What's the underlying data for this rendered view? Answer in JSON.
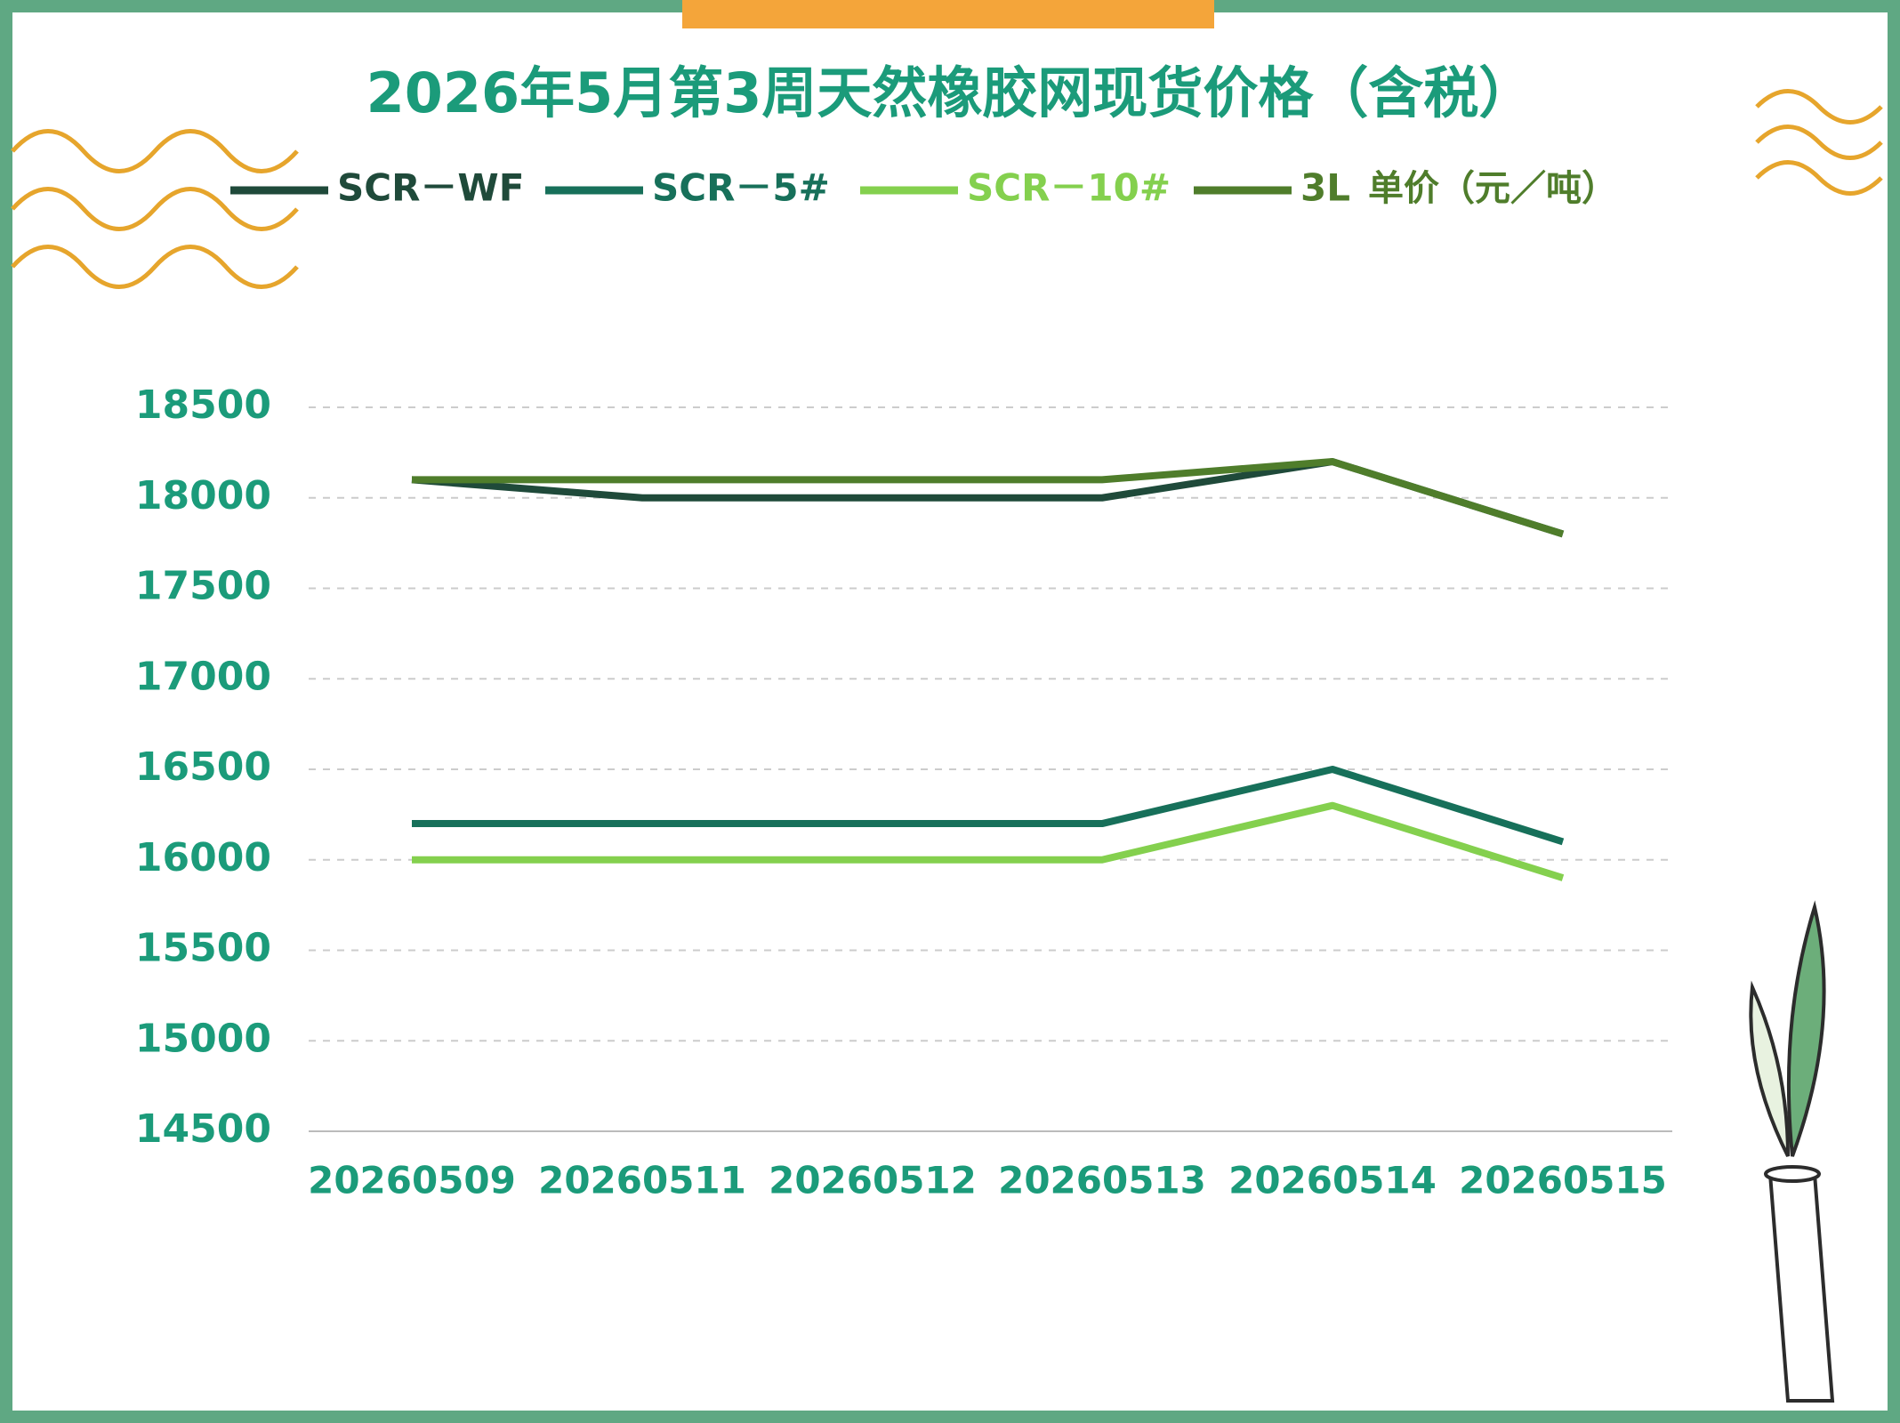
{
  "chart_data": {
    "type": "line",
    "title": "2026年5月第3周天然橡胶网现货价格（含税）",
    "y_label": "单价（元／吨）",
    "categories": [
      "20260509",
      "20260511",
      "20260512",
      "20260513",
      "20260514",
      "20260515"
    ],
    "series": [
      {
        "name": "SCR－WF",
        "color": "#1f4a3a",
        "values": [
          18100,
          18000,
          18000,
          18000,
          18200,
          17800
        ]
      },
      {
        "name": "SCR－5#",
        "color": "#17705a",
        "values": [
          16200,
          16200,
          16200,
          16200,
          16500,
          16100
        ]
      },
      {
        "name": "SCR－10#",
        "color": "#84d04e",
        "values": [
          16000,
          16000,
          16000,
          16000,
          16300,
          15900
        ]
      },
      {
        "name": "3L",
        "color": "#4f7d2b",
        "values": [
          18100,
          18100,
          18100,
          18100,
          18200,
          17800
        ]
      }
    ],
    "ylim": [
      14500,
      18500
    ],
    "yticks": [
      14500,
      15000,
      15500,
      16000,
      16500,
      17000,
      17500,
      18000,
      18500
    ],
    "grid": true
  }
}
